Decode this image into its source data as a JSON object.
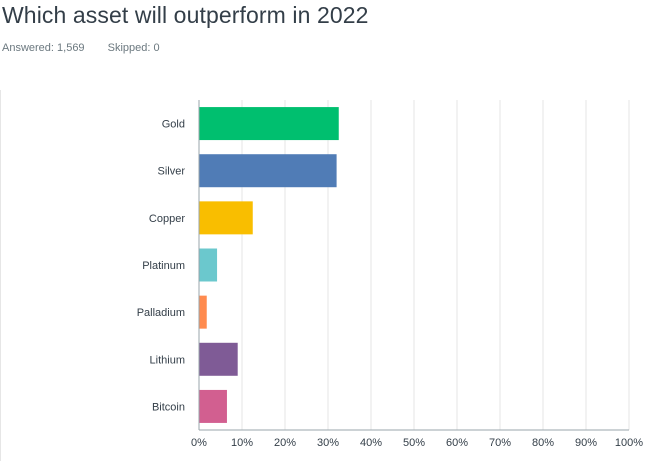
{
  "header": {
    "title": "Which asset will outperform in 2022",
    "answered_label": "Answered: 1,569",
    "skipped_label": "Skipped: 0"
  },
  "chart_data": {
    "type": "bar",
    "orientation": "horizontal",
    "categories": [
      "Gold",
      "Silver",
      "Copper",
      "Platinum",
      "Palladium",
      "Lithium",
      "Bitcoin"
    ],
    "values": [
      32.5,
      32.0,
      12.5,
      4.2,
      1.8,
      9.0,
      6.5
    ],
    "colors": [
      "#00bf6f",
      "#507cb6",
      "#f9be00",
      "#6bc8cd",
      "#ff8b4f",
      "#7f5b96",
      "#d25f90"
    ],
    "xlim": [
      0,
      100
    ],
    "x_ticks": [
      "0%",
      "10%",
      "20%",
      "30%",
      "40%",
      "50%",
      "60%",
      "70%",
      "80%",
      "90%",
      "100%"
    ],
    "title": "",
    "xlabel": "",
    "ylabel": "",
    "grid": true,
    "gridline_color": "#e6e6e6",
    "axis_color": "#9aa5ab"
  }
}
